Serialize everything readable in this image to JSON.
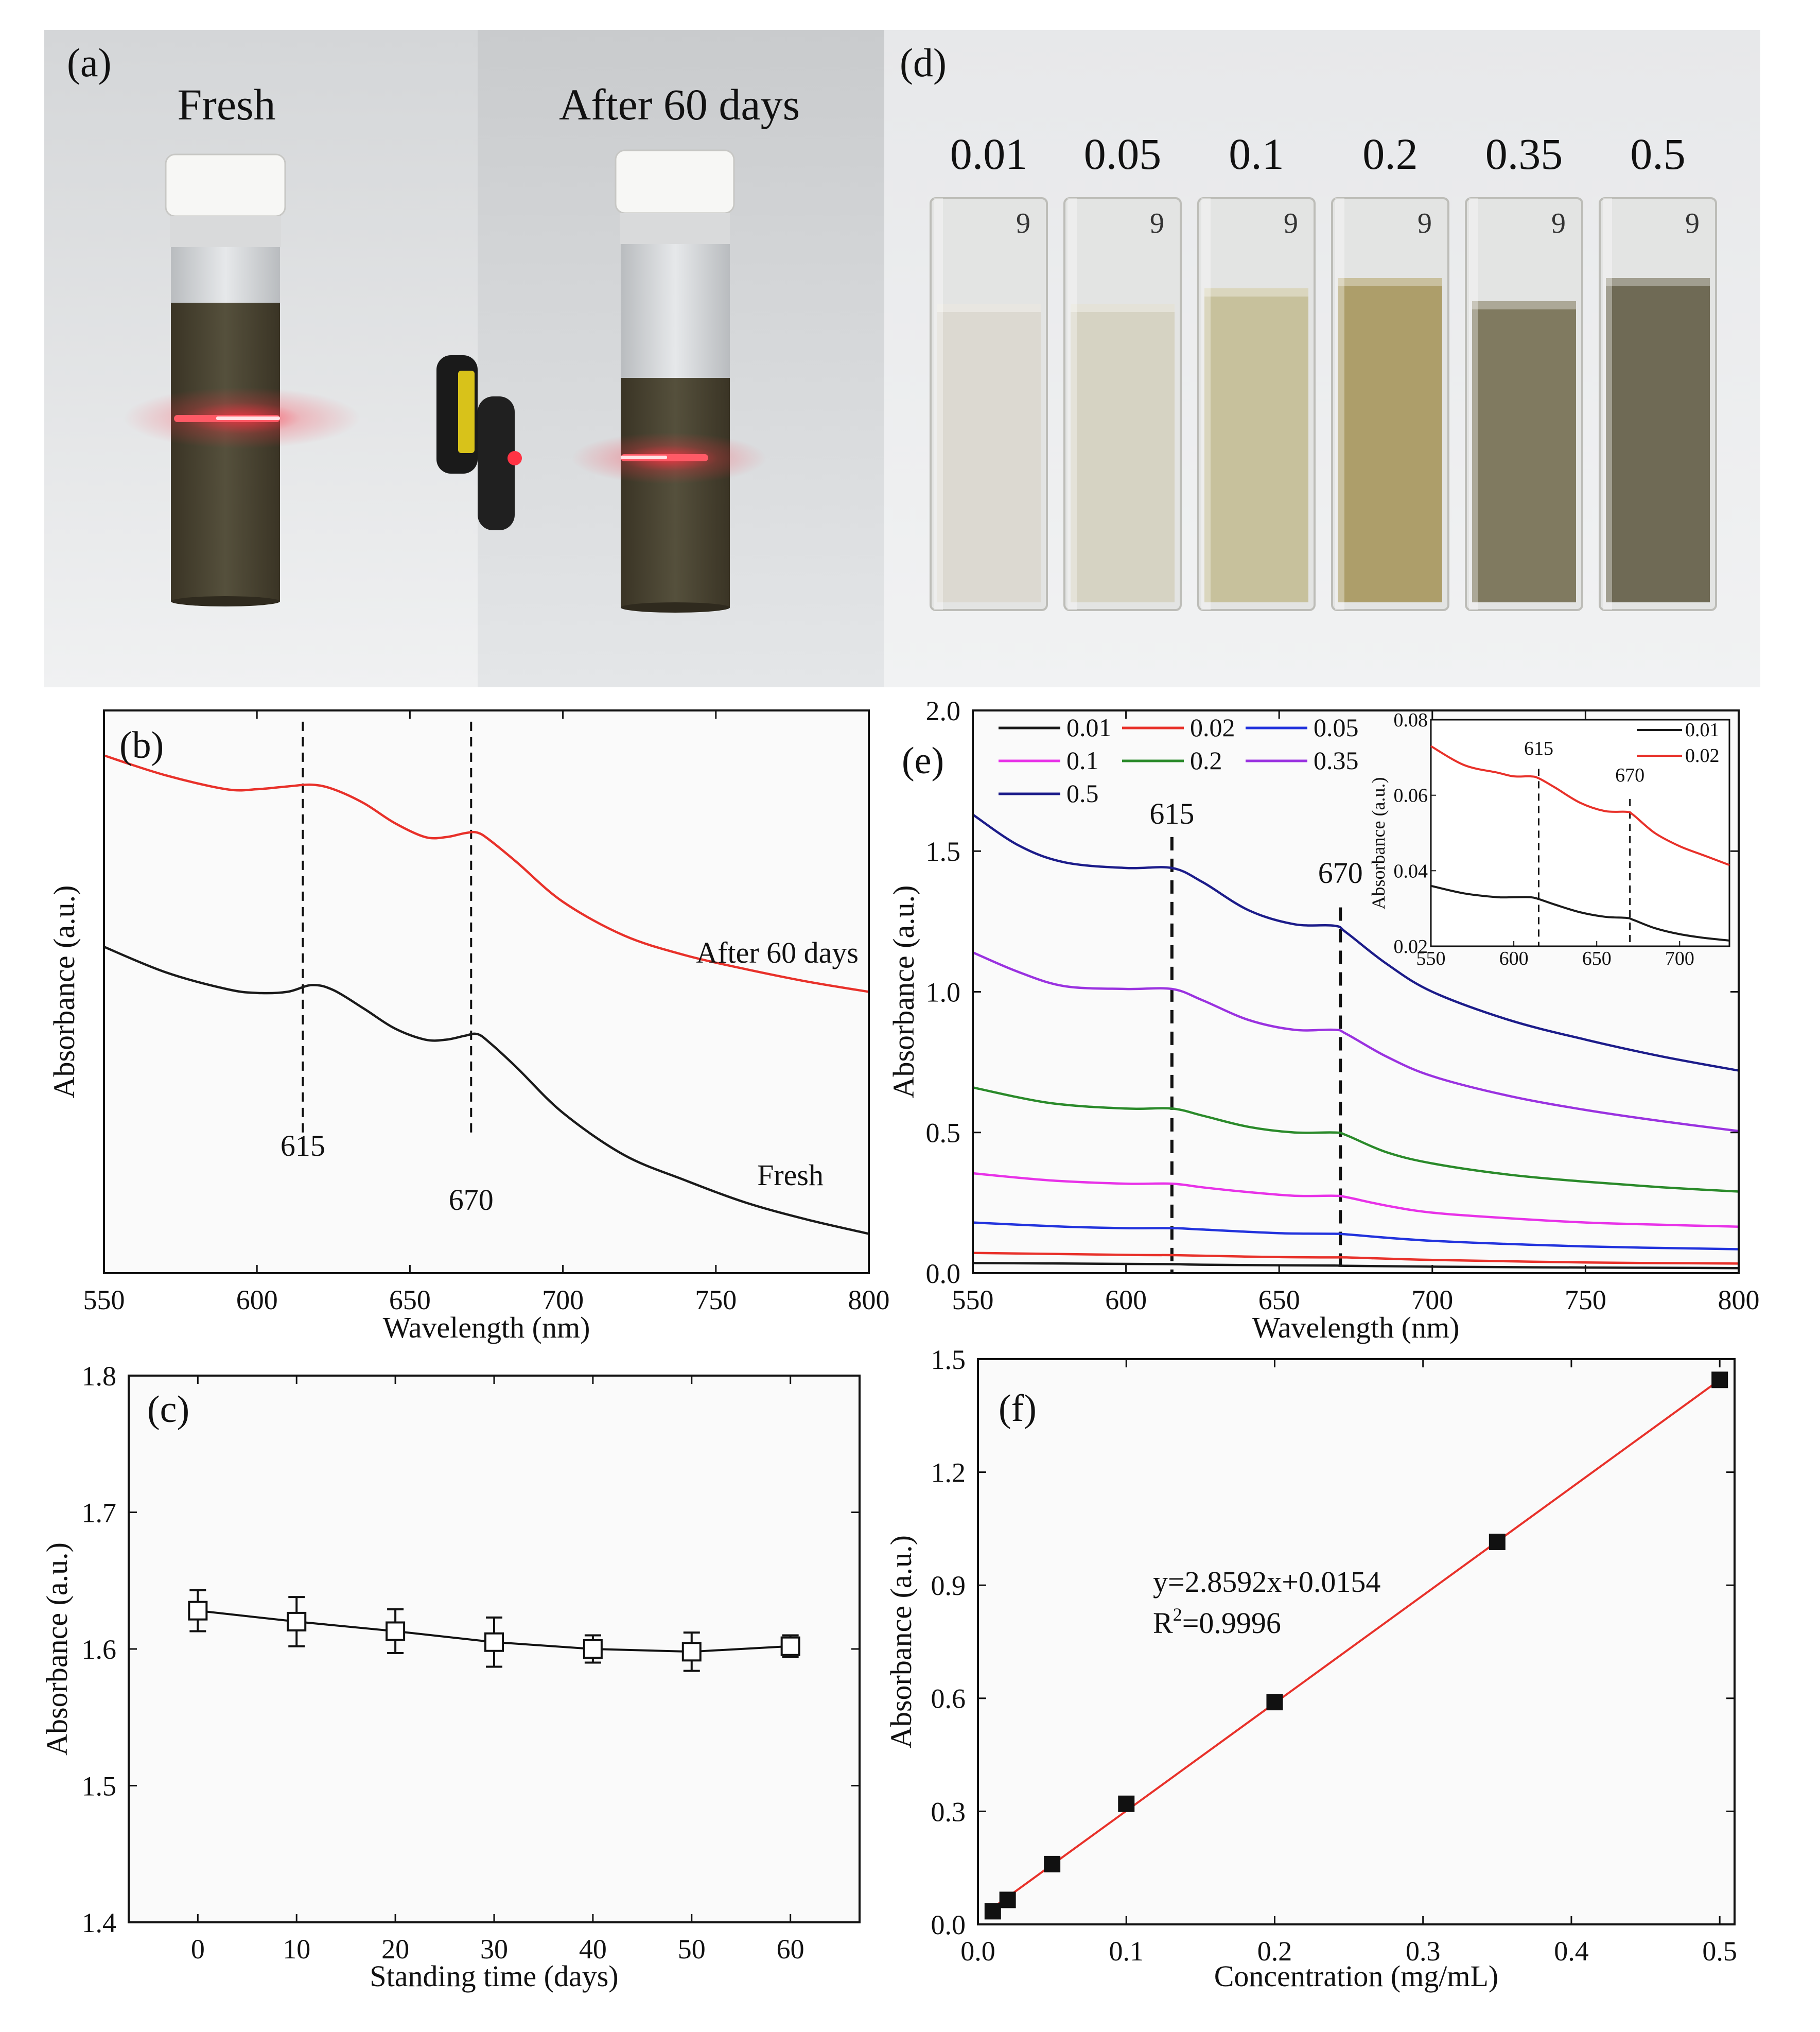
{
  "photos": {
    "a": {
      "panel_label": "(a)",
      "labels": [
        "Fresh",
        "After 60 days"
      ]
    },
    "d": {
      "panel_label": "(d)",
      "concentrations": [
        "0.01",
        "0.05",
        "0.1",
        "0.2",
        "0.35",
        "0.5"
      ],
      "cuvette_mark": "9",
      "cuvette_colors": [
        "#dcd9d1",
        "#d6d3c3",
        "#c7c19c",
        "#ad9e6a",
        "#807a60",
        "#6f6a55"
      ]
    }
  },
  "chart_data": [
    {
      "id": "b",
      "type": "line",
      "panel_label": "(b)",
      "xlabel": "Wavelength (nm)",
      "ylabel": "Absorbance (a.u.)",
      "xlim": [
        550,
        800
      ],
      "ylim": [
        0,
        1
      ],
      "xticks": [
        "550",
        "600",
        "650",
        "700",
        "750",
        "800"
      ],
      "yticks_visible": false,
      "series": [
        {
          "name": "After 60 days",
          "color": "#e8312a",
          "x": [
            550,
            570,
            590,
            600,
            610,
            618,
            625,
            635,
            645,
            655,
            662,
            668,
            672,
            676,
            685,
            700,
            720,
            740,
            760,
            780,
            800
          ],
          "y": [
            0.92,
            0.885,
            0.86,
            0.86,
            0.865,
            0.868,
            0.86,
            0.835,
            0.8,
            0.775,
            0.775,
            0.782,
            0.783,
            0.77,
            0.73,
            0.66,
            0.6,
            0.565,
            0.54,
            0.518,
            0.5
          ]
        },
        {
          "name": "Fresh",
          "color": "#1a1a1a",
          "x": [
            550,
            570,
            590,
            600,
            610,
            618,
            625,
            635,
            645,
            655,
            662,
            668,
            672,
            676,
            685,
            700,
            720,
            740,
            760,
            780,
            800
          ],
          "y": [
            0.58,
            0.535,
            0.505,
            0.498,
            0.5,
            0.512,
            0.503,
            0.47,
            0.435,
            0.415,
            0.415,
            0.422,
            0.425,
            0.41,
            0.365,
            0.285,
            0.21,
            0.165,
            0.125,
            0.095,
            0.07
          ]
        }
      ],
      "annotations": {
        "series_labels": [
          "After 60 days",
          "Fresh"
        ],
        "peaks": [
          615,
          670
        ],
        "peak_labels": [
          "615",
          "670"
        ]
      }
    },
    {
      "id": "e",
      "type": "line",
      "panel_label": "(e)",
      "xlabel": "Wavelength (nm)",
      "ylabel": "Absorbance (a.u.)",
      "xlim": [
        550,
        800
      ],
      "ylim": [
        0,
        2.0
      ],
      "xticks": [
        "550",
        "600",
        "650",
        "700",
        "750",
        "800"
      ],
      "yticks": [
        "0.0",
        "0.5",
        "1.0",
        "1.5",
        "2.0"
      ],
      "peaks": [
        615,
        670
      ],
      "peak_labels": [
        "615",
        "670"
      ],
      "series": [
        {
          "name": "0.01",
          "color": "#1a1a1a",
          "x": [
            550,
            600,
            615,
            625,
            650,
            668,
            672,
            700,
            750,
            800
          ],
          "y": [
            0.036,
            0.033,
            0.032,
            0.03,
            0.028,
            0.027,
            0.026,
            0.023,
            0.02,
            0.018
          ]
        },
        {
          "name": "0.02",
          "color": "#e8312a",
          "x": [
            550,
            600,
            615,
            625,
            650,
            668,
            672,
            700,
            750,
            800
          ],
          "y": [
            0.072,
            0.065,
            0.064,
            0.062,
            0.057,
            0.056,
            0.056,
            0.047,
            0.038,
            0.034
          ]
        },
        {
          "name": "0.05",
          "color": "#2233dd",
          "x": [
            550,
            580,
            600,
            615,
            625,
            650,
            668,
            672,
            700,
            750,
            800
          ],
          "y": [
            0.18,
            0.165,
            0.16,
            0.16,
            0.155,
            0.142,
            0.14,
            0.138,
            0.115,
            0.095,
            0.085
          ]
        },
        {
          "name": "0.1",
          "color": "#e832e8",
          "x": [
            550,
            575,
            600,
            615,
            625,
            640,
            655,
            668,
            672,
            685,
            700,
            725,
            750,
            775,
            800
          ],
          "y": [
            0.355,
            0.33,
            0.318,
            0.318,
            0.305,
            0.288,
            0.275,
            0.275,
            0.27,
            0.24,
            0.215,
            0.195,
            0.18,
            0.172,
            0.165
          ]
        },
        {
          "name": "0.2",
          "color": "#2a8a2a",
          "x": [
            550,
            575,
            600,
            615,
            625,
            640,
            655,
            668,
            672,
            685,
            700,
            725,
            750,
            775,
            800
          ],
          "y": [
            0.66,
            0.605,
            0.585,
            0.585,
            0.56,
            0.52,
            0.5,
            0.5,
            0.49,
            0.43,
            0.39,
            0.35,
            0.325,
            0.305,
            0.29
          ]
        },
        {
          "name": "0.35",
          "color": "#9a32e0",
          "x": [
            550,
            565,
            580,
            600,
            615,
            625,
            640,
            655,
            668,
            672,
            685,
            700,
            725,
            750,
            775,
            800
          ],
          "y": [
            1.14,
            1.07,
            1.02,
            1.01,
            1.01,
            0.97,
            0.9,
            0.865,
            0.865,
            0.85,
            0.77,
            0.7,
            0.63,
            0.58,
            0.54,
            0.505
          ]
        },
        {
          "name": "0.5",
          "color": "#1c1c8a",
          "x": [
            550,
            565,
            580,
            600,
            615,
            625,
            640,
            655,
            668,
            672,
            685,
            700,
            725,
            750,
            775,
            800
          ],
          "y": [
            1.63,
            1.52,
            1.46,
            1.44,
            1.44,
            1.39,
            1.29,
            1.24,
            1.235,
            1.21,
            1.1,
            1.0,
            0.9,
            0.83,
            0.77,
            0.72
          ]
        }
      ],
      "inset": {
        "xlim": [
          550,
          730
        ],
        "ylim": [
          0.02,
          0.08
        ],
        "ylabel": "Absorbance (a.u.)",
        "xticks": [
          "550",
          "600",
          "650",
          "700"
        ],
        "yticks": [
          "0.02",
          "0.04",
          "0.06",
          "0.08"
        ],
        "peak_labels": [
          "615",
          "670"
        ],
        "series": [
          {
            "name": "0.01",
            "color": "#1a1a1a",
            "x": [
              550,
              570,
              590,
              600,
              610,
              615,
              625,
              640,
              655,
              668,
              672,
              685,
              700,
              715,
              730
            ],
            "y": [
              0.036,
              0.034,
              0.033,
              0.033,
              0.033,
              0.0325,
              0.031,
              0.029,
              0.0278,
              0.0275,
              0.027,
              0.0248,
              0.0232,
              0.0222,
              0.0215
            ]
          },
          {
            "name": "0.02",
            "color": "#e8312a",
            "x": [
              550,
              570,
              590,
              600,
              610,
              615,
              625,
              640,
              655,
              668,
              672,
              685,
              700,
              715,
              730
            ],
            "y": [
              0.073,
              0.068,
              0.066,
              0.065,
              0.065,
              0.0645,
              0.062,
              0.058,
              0.0558,
              0.0556,
              0.0548,
              0.05,
              0.0465,
              0.044,
              0.0415
            ]
          }
        ]
      }
    },
    {
      "id": "c",
      "type": "scatter",
      "panel_label": "(c)",
      "xlabel": "Standing time (days)",
      "ylabel": "Absorbance (a.u.)",
      "xlim": [
        -7,
        67
      ],
      "ylim": [
        1.4,
        1.8
      ],
      "xticks": [
        "0",
        "10",
        "20",
        "30",
        "40",
        "50",
        "60"
      ],
      "yticks": [
        "1.4",
        "1.5",
        "1.6",
        "1.7",
        "1.8"
      ],
      "x": [
        0,
        10,
        20,
        30,
        40,
        50,
        60
      ],
      "y": [
        1.628,
        1.62,
        1.613,
        1.605,
        1.6,
        1.598,
        1.602
      ],
      "yerr": [
        0.015,
        0.018,
        0.016,
        0.018,
        0.01,
        0.014,
        0.008
      ]
    },
    {
      "id": "f",
      "type": "scatter",
      "panel_label": "(f)",
      "xlabel": "Concentration (mg/mL)",
      "ylabel": "Absorbance (a.u.)",
      "xlim": [
        0.0,
        0.51
      ],
      "ylim": [
        0.0,
        1.5
      ],
      "xticks": [
        "0.0",
        "0.1",
        "0.2",
        "0.3",
        "0.4",
        "0.5"
      ],
      "yticks": [
        "0.0",
        "0.3",
        "0.6",
        "0.9",
        "1.2",
        "1.5"
      ],
      "x": [
        0.01,
        0.02,
        0.05,
        0.1,
        0.2,
        0.35,
        0.5
      ],
      "y": [
        0.035,
        0.065,
        0.16,
        0.32,
        0.59,
        1.015,
        1.445
      ],
      "fit": {
        "slope": 2.8592,
        "intercept": 0.0154,
        "x_range": [
          0.0,
          0.5
        ],
        "color": "#e8312a"
      },
      "equation": "y=2.8592x+0.0154",
      "r2_prefix": "R",
      "r2_sup": "2",
      "r2_value": "=0.9996"
    }
  ]
}
